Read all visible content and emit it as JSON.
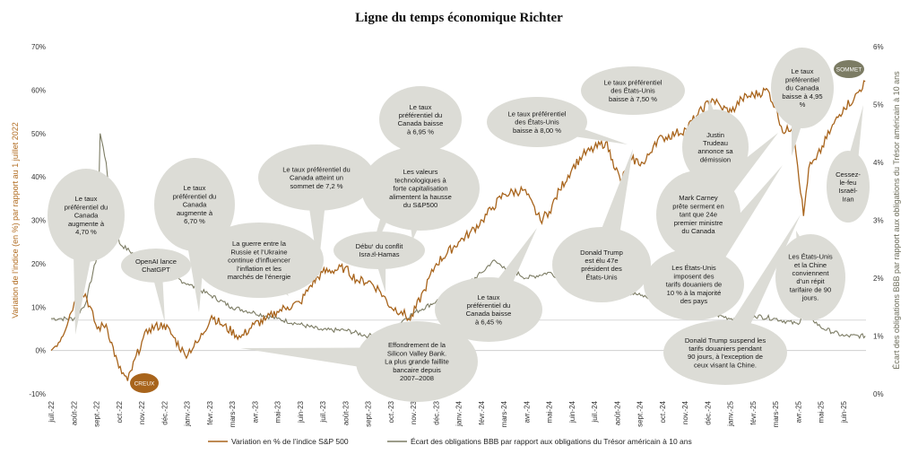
{
  "title": "Ligne du temps économique Richter",
  "chart_data": {
    "type": "line",
    "title": "Ligne du temps économique Richter",
    "ylabel_left": "Variation de l’indice (en %) par rapport au 1 juillet 2022",
    "ylabel_right": "Écart des obligations BBB par rapport aux obligations du Trésor américain à 10 ans",
    "ylim_left": [
      -10,
      70
    ],
    "ylim_right": [
      0,
      6
    ],
    "yticks_left": [
      "-10%",
      "0%",
      "10%",
      "20%",
      "30%",
      "40%",
      "50%",
      "60%",
      "70%"
    ],
    "yticks_right": [
      "0%",
      "1%",
      "2%",
      "3%",
      "4%",
      "5%",
      "6%"
    ],
    "x_ticks": [
      "juil.-22",
      "août-22",
      "sept.-22",
      "oct.-22",
      "nov.-22",
      "déc.-22",
      "janv.-23",
      "févr.-23",
      "mars-23",
      "avr.-23",
      "mai-23",
      "juin-23",
      "juil.-23",
      "août-23",
      "sept.-23",
      "oct.-23",
      "nov.-23",
      "déc.-23",
      "janv.-24",
      "févr.-24",
      "mars-24",
      "avr.-24",
      "mai-24",
      "juin-24",
      "juil.-24",
      "août-24",
      "sept.-24",
      "oct.-24",
      "nov.-24",
      "déc.-24",
      "janv.-25",
      "févr.-25",
      "mars-25",
      "avr.-25",
      "mai-25",
      "juin-25"
    ],
    "grid": false,
    "legend_position": "bottom",
    "series": [
      {
        "name": "Variation en % de l’indice S&P 500",
        "axis": "left",
        "color": "#a8641c",
        "x": [
          "2022-07-01",
          "2022-07-15",
          "2022-08-01",
          "2022-08-16",
          "2022-09-01",
          "2022-09-13",
          "2022-09-30",
          "2022-10-12",
          "2022-10-31",
          "2022-11-10",
          "2022-11-30",
          "2022-12-13",
          "2022-12-28",
          "2023-01-15",
          "2023-02-02",
          "2023-02-15",
          "2023-03-13",
          "2023-03-31",
          "2023-04-15",
          "2023-05-01",
          "2023-05-15",
          "2023-06-01",
          "2023-06-15",
          "2023-07-01",
          "2023-07-31",
          "2023-08-18",
          "2023-09-01",
          "2023-09-15",
          "2023-10-01",
          "2023-10-15",
          "2023-10-27",
          "2023-11-15",
          "2023-12-01",
          "2023-12-31",
          "2024-01-15",
          "2024-02-01",
          "2024-02-15",
          "2024-03-01",
          "2024-03-28",
          "2024-04-19",
          "2024-05-01",
          "2024-05-15",
          "2024-06-01",
          "2024-06-15",
          "2024-07-16",
          "2024-07-25",
          "2024-08-05",
          "2024-08-20",
          "2024-09-06",
          "2024-09-20",
          "2024-10-01",
          "2024-10-18",
          "2024-11-01",
          "2024-11-15",
          "2024-12-06",
          "2024-12-18",
          "2025-01-01",
          "2025-01-15",
          "2025-02-19",
          "2025-03-01",
          "2025-03-13",
          "2025-03-25",
          "2025-04-08",
          "2025-04-15",
          "2025-04-25",
          "2025-05-15",
          "2025-06-01",
          "2025-06-15",
          "2025-06-30"
        ],
        "values": [
          0,
          3,
          11,
          13,
          5,
          6,
          -4,
          -7,
          2,
          5,
          6,
          3,
          -1,
          2,
          8,
          6,
          3,
          6,
          7,
          9,
          10,
          11,
          15,
          18,
          19,
          16,
          16,
          14,
          10,
          9,
          7,
          14,
          20,
          25,
          27,
          30,
          33,
          36,
          37,
          30,
          32,
          37,
          42,
          45,
          48,
          44,
          39,
          44,
          43,
          48,
          49,
          50,
          51,
          54,
          58,
          56,
          55,
          58,
          60,
          56,
          50,
          52,
          31,
          42,
          44,
          51,
          56,
          58,
          62
        ]
      },
      {
        "name": "Écart des obligations BBB par rapport aux obligations du Trésor américain à 10 ans",
        "axis": "right",
        "color": "#7c7c64",
        "x": [
          "2022-07-01",
          "2022-07-15",
          "2022-08-01",
          "2022-08-16",
          "2022-09-01",
          "2022-09-05",
          "2022-09-13",
          "2022-09-20",
          "2022-10-01",
          "2022-11-01",
          "2022-12-01",
          "2023-01-01",
          "2023-02-01",
          "2023-03-01",
          "2023-04-01",
          "2023-05-01",
          "2023-06-01",
          "2023-07-01",
          "2023-08-01",
          "2023-09-01",
          "2023-10-01",
          "2023-10-20",
          "2023-11-01",
          "2023-12-01",
          "2024-01-01",
          "2024-02-01",
          "2024-02-15",
          "2024-03-01",
          "2024-04-01",
          "2024-05-01",
          "2024-06-01",
          "2024-07-01",
          "2024-08-01",
          "2024-09-01",
          "2024-10-01",
          "2024-11-01",
          "2024-12-01",
          "2025-01-01",
          "2025-02-01",
          "2025-03-01",
          "2025-04-01",
          "2025-04-08",
          "2025-05-01",
          "2025-06-01",
          "2025-06-30"
        ],
        "values": [
          1.3,
          1.3,
          1.3,
          1.55,
          2.4,
          4.5,
          4.0,
          3.2,
          2.6,
          2.3,
          2.1,
          1.9,
          1.7,
          1.5,
          1.4,
          1.3,
          1.2,
          1.1,
          1.1,
          1.0,
          1.1,
          1.3,
          1.4,
          1.6,
          1.8,
          2.1,
          2.3,
          2.2,
          2.0,
          2.1,
          1.9,
          1.8,
          1.8,
          1.7,
          1.6,
          1.45,
          1.4,
          1.3,
          1.35,
          1.3,
          1.2,
          1.45,
          1.15,
          1.0,
          1.0
        ]
      }
    ],
    "reference_lines": [
      {
        "axis": "left",
        "value": 7,
        "color": "#d8d8d8"
      }
    ],
    "badges": [
      {
        "label": "CREUX",
        "x": "2022-10-12",
        "y": -7.6,
        "color": "#a8641c"
      },
      {
        "label": "SOMMET",
        "x": "2025-06-20",
        "y": 63,
        "color": "#7c7c64"
      }
    ],
    "annotations": [
      {
        "lines": [
          "Le taux",
          "préférentiel du",
          "Canada",
          "augmente à",
          "4,70 %"
        ],
        "x": "2022-07-13"
      },
      {
        "lines": [
          "OpenAI lance",
          "ChatGPT"
        ],
        "x": "2022-11-30"
      },
      {
        "lines": [
          "Le taux",
          "préférentiel du",
          "Canada",
          "augmente à",
          "6,70 %"
        ],
        "x": "2023-01-25"
      },
      {
        "lines": [
          "La guerre entre la",
          "Russie et l’Ukraine",
          "continue d’influencer",
          "l’inflation et les",
          "marchés de l’énergie"
        ],
        "x": "2023-07-01"
      },
      {
        "lines": [
          "Le taux préférentiel du",
          "Canada atteint un",
          "sommet de 7,2 %"
        ],
        "x": "2023-07-12"
      },
      {
        "lines": [
          "Début du conflit",
          "Israël-Hamas"
        ],
        "x": "2023-10-07"
      },
      {
        "lines": [
          "Effondrement de la",
          "Silicon Valley Bank.",
          "La plus grande faillite",
          "bancaire depuis",
          "2007–2008"
        ],
        "x": "2023-03-10"
      },
      {
        "lines": [
          "Le taux",
          "préférentiel du",
          "Canada baisse",
          "à 6,95 %"
        ],
        "x": "2024-06-05"
      },
      {
        "lines": [
          "Les valeurs",
          "technologiques à",
          "forte capitalisation",
          "alimentent la hausse",
          "du S&P500"
        ],
        "x": "2024-03-01"
      },
      {
        "lines": [
          "Le taux",
          "préférentiel du",
          "Canada baisse",
          "à 6,45 %"
        ],
        "x": "2024-07-24"
      },
      {
        "lines": [
          "Le taux préférentiel",
          "des États-Unis",
          "baisse à 8,00 %"
        ],
        "x": "2024-09-18"
      },
      {
        "lines": [
          "Le taux préférentiel",
          "des États-Unis",
          "baisse à 7,50 %"
        ],
        "x": "2024-11-07"
      },
      {
        "lines": [
          "Donald Trump",
          "est élu 47e",
          "président des",
          "États-Unis"
        ],
        "x": "2024-11-05"
      },
      {
        "lines": [
          "Justin",
          "Trudeau",
          "annonce sa",
          "démission"
        ],
        "x": "2025-01-06"
      },
      {
        "lines": [
          "Mark Carney",
          "prête serment en",
          "tant que 24e",
          "premier ministre",
          "du Canada"
        ],
        "x": "2025-03-14"
      },
      {
        "lines": [
          "Les États-Unis",
          "imposent des",
          "tarifs douaniers de",
          "10 % à la majorité",
          "des pays"
        ],
        "x": "2025-04-02"
      },
      {
        "lines": [
          "Le taux",
          "préférentiel",
          "du Canada",
          "baisse à 4,95",
          "%"
        ],
        "x": "2025-03-12"
      },
      {
        "lines": [
          "Donald Trump suspend les",
          "tarifs douaniers pendant",
          "90 jours, à l’exception de",
          "ceux visant la Chine."
        ],
        "x": "2025-04-09"
      },
      {
        "lines": [
          "Les États-Unis",
          "et la Chine",
          "conviennent",
          "d’un répit",
          "tarifaire de 90",
          "jours."
        ],
        "x": "2025-05-12"
      },
      {
        "lines": [
          "Cessez-",
          "le-feu",
          "Israël-",
          "Iran"
        ],
        "x": "2025-06-24"
      }
    ]
  }
}
